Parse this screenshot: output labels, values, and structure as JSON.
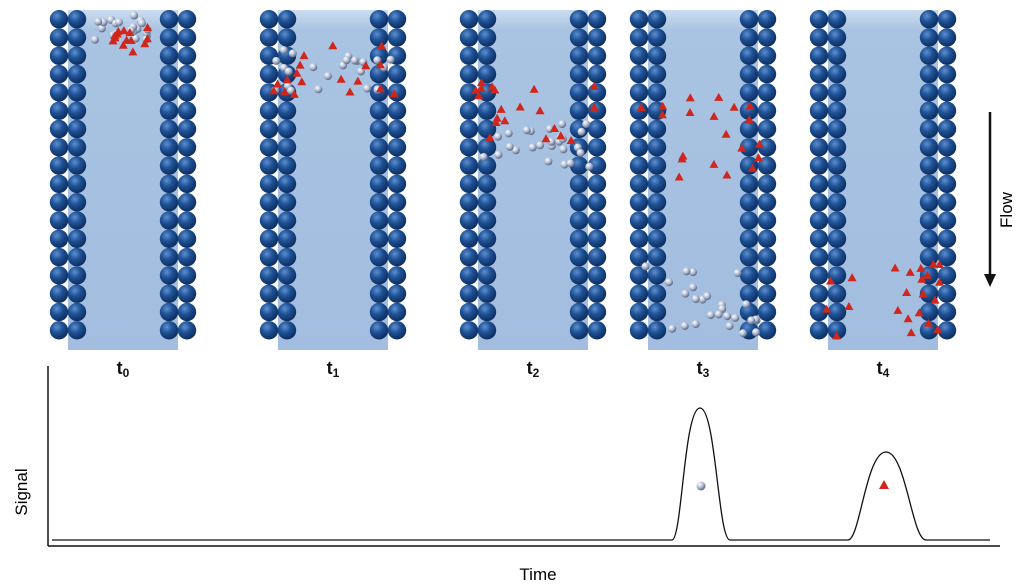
{
  "panels": [
    {
      "label": "t",
      "subscript": "0"
    },
    {
      "label": "t",
      "subscript": "1"
    },
    {
      "label": "t",
      "subscript": "2"
    },
    {
      "label": "t",
      "subscript": "3"
    },
    {
      "label": "t",
      "subscript": "4"
    }
  ],
  "flow_label": "Flow",
  "y_axis_label": "Signal",
  "x_axis_label": "Time"
}
